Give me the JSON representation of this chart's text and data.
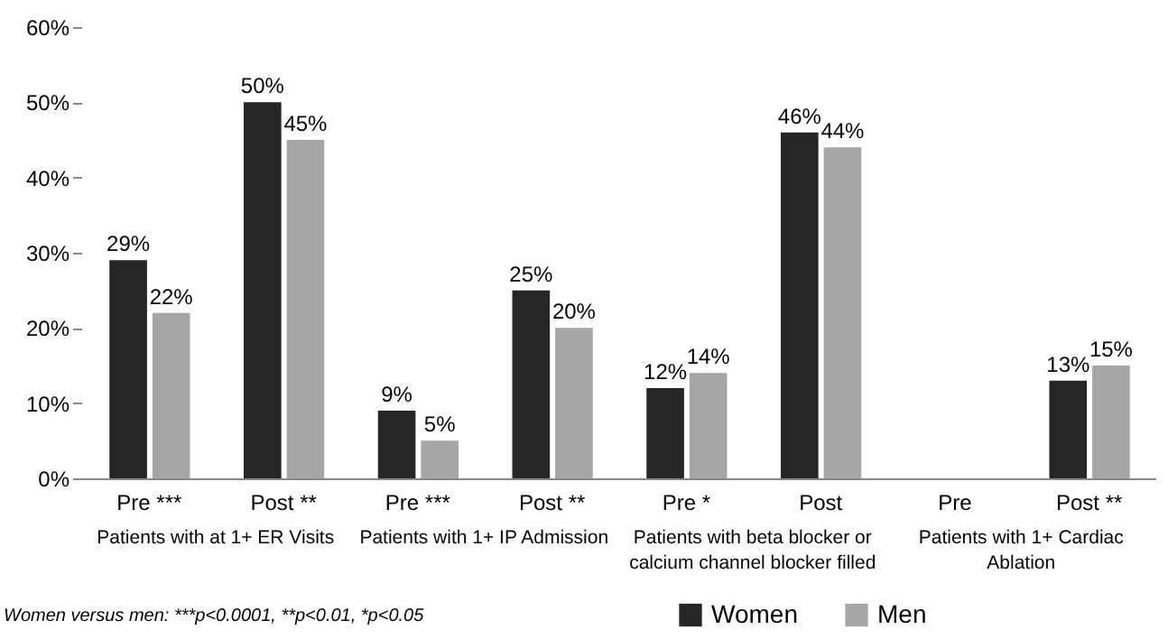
{
  "chart_data": {
    "type": "bar",
    "categories": [
      "Pre ***",
      "Post **",
      "Pre ***",
      "Post **",
      "Pre *",
      "Post",
      "Pre",
      "Post **"
    ],
    "series": [
      {
        "name": "Women",
        "color": "#262626",
        "values": [
          29,
          50,
          9,
          25,
          12,
          46,
          null,
          13
        ],
        "value_labels": [
          "29%",
          "50%",
          "9%",
          "25%",
          "12%",
          "46%",
          null,
          "13%"
        ]
      },
      {
        "name": "Men",
        "color": "#a6a6a6",
        "values": [
          22,
          45,
          5,
          20,
          14,
          44,
          null,
          15
        ],
        "value_labels": [
          "22%",
          "45%",
          "5%",
          "20%",
          "14%",
          "44%",
          null,
          "15%"
        ]
      }
    ],
    "annotations": [
      "Patients with at 1+ ER Visits",
      "Patients with 1+ IP Admission",
      "Patients with beta blocker or calcium channel blocker filled",
      "Patients with 1+ Cardiac Ablation",
      "Women versus men: ***p<0.0001, **p<0.01, *p<0.05"
    ],
    "ylim": [
      0,
      60
    ],
    "yticks": [
      {
        "value": 0,
        "label": "0%"
      },
      {
        "value": 10,
        "label": "10%"
      },
      {
        "value": 20,
        "label": "20%"
      },
      {
        "value": 30,
        "label": "30%"
      },
      {
        "value": 40,
        "label": "40%"
      },
      {
        "value": 50,
        "label": "50%"
      },
      {
        "value": 60,
        "label": "60%"
      }
    ],
    "legend": "bottom",
    "grid": false
  }
}
